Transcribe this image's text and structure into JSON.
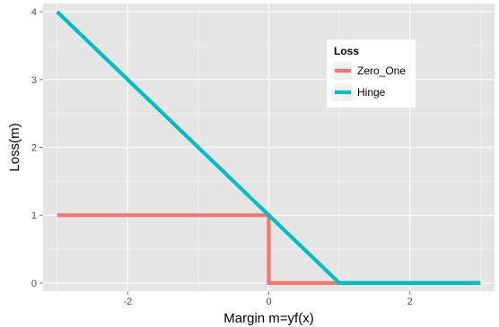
{
  "chart_data": {
    "type": "line",
    "title": "",
    "xlabel": "Margin m=yf(x)",
    "ylabel": "Loss(m)",
    "xlim": [
      -3.2,
      3.2
    ],
    "ylim": [
      -0.12,
      4.12
    ],
    "x_ticks": [
      -2,
      0,
      2
    ],
    "y_ticks": [
      0,
      1,
      2,
      3,
      4
    ],
    "x_tick_labels": [
      "-2",
      "0",
      "2"
    ],
    "y_tick_labels": [
      "0",
      "1",
      "2",
      "3",
      "4"
    ],
    "grid": true,
    "legend": {
      "title": "Loss",
      "placement": "top-right",
      "entries": [
        "Zero_One",
        "Hinge"
      ]
    },
    "series": [
      {
        "name": "Zero_One",
        "color": "#F8766D",
        "x": [
          -3,
          0,
          0,
          3
        ],
        "y": [
          1,
          1,
          0,
          0
        ]
      },
      {
        "name": "Hinge",
        "color": "#00BFC4",
        "x": [
          -3,
          1,
          3
        ],
        "y": [
          4,
          0,
          0
        ]
      }
    ],
    "panel_color": "#E5E5E5",
    "grid_color": "#FFFFFF"
  }
}
